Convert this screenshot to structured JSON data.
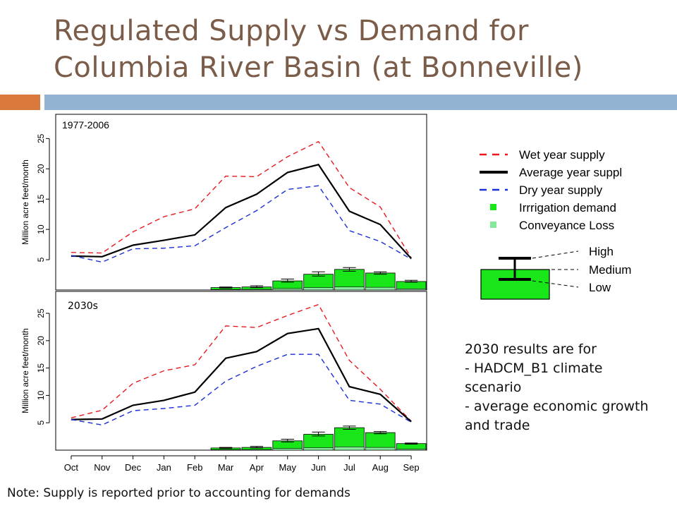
{
  "slide": {
    "title_lines": [
      "Regulated Supply vs Demand for",
      "Columbia River Basin (at Bonneville)"
    ],
    "results_note": [
      "2030 results are for",
      "- HADCM_B1 climate",
      "scenario",
      "- average economic growth",
      "and trade"
    ],
    "footnote": "Note: Supply is reported prior to accounting for demands"
  },
  "legend": {
    "items": [
      {
        "label": "Wet year supply",
        "color": "#e8191f",
        "style": "dashed"
      },
      {
        "label": "Average year suppl",
        "color": "#000000",
        "style": "solid"
      },
      {
        "label": "Dry year supply",
        "color": "#1a2fd6",
        "style": "dashed"
      },
      {
        "label": "Irrrigation demand",
        "color": "#19e619",
        "style": "square"
      },
      {
        "label": "Conveyance Loss",
        "color": "#86e89a",
        "style": "square"
      }
    ],
    "errorbar_labels": [
      "High",
      "Medium",
      "Low"
    ]
  },
  "colors": {
    "wet": "#e8191f",
    "average": "#000000",
    "dry": "#1a2fd6",
    "irrigation": "#19e619",
    "conveyance": "#86e89a"
  },
  "chart_data": [
    {
      "type": "line",
      "title": "1977-2006",
      "ylabel": "Million acre feet/month",
      "ylim": [
        0,
        29
      ],
      "yticks": [
        5,
        10,
        15,
        20,
        25
      ],
      "categories": [
        "Oct",
        "Nov",
        "Dec",
        "Jan",
        "Feb",
        "Mar",
        "Apr",
        "May",
        "Jun",
        "Jul",
        "Aug",
        "Sep"
      ],
      "series": [
        {
          "name": "Wet year supply",
          "values": [
            6.2,
            6.1,
            9.6,
            12.1,
            13.4,
            18.8,
            18.7,
            22.0,
            24.5,
            16.9,
            13.7,
            5.3
          ]
        },
        {
          "name": "Average year suppl",
          "values": [
            5.6,
            5.5,
            7.4,
            8.2,
            9.1,
            13.6,
            15.8,
            19.4,
            20.7,
            13.0,
            10.8,
            5.2
          ]
        },
        {
          "name": "Dry year supply",
          "values": [
            5.7,
            4.6,
            6.8,
            6.9,
            7.3,
            10.3,
            13.1,
            16.6,
            17.2,
            9.8,
            8.0,
            5.1
          ]
        }
      ],
      "demand": {
        "irrigation": [
          0,
          0,
          0,
          0,
          0,
          0.4,
          0.5,
          1.5,
          2.6,
          3.4,
          2.8,
          1.4
        ],
        "conveyance": [
          0,
          0,
          0,
          0,
          0,
          0.08,
          0.1,
          0.25,
          0.4,
          0.5,
          0.45,
          0.2
        ],
        "low": [
          0,
          0,
          0,
          0,
          0,
          0.3,
          0.4,
          1.3,
          2.3,
          3.1,
          2.6,
          1.3
        ],
        "high": [
          0,
          0,
          0,
          0,
          0,
          0.5,
          0.7,
          1.8,
          3.0,
          3.7,
          3.0,
          1.6
        ]
      }
    },
    {
      "type": "line",
      "title": "2030s",
      "ylabel": "Million acre feet/month",
      "ylim": [
        0,
        29
      ],
      "yticks": [
        5,
        10,
        15,
        20,
        25
      ],
      "categories": [
        "Oct",
        "Nov",
        "Dec",
        "Jan",
        "Feb",
        "Mar",
        "Apr",
        "May",
        "Jun",
        "Jul",
        "Aug",
        "Sep"
      ],
      "series": [
        {
          "name": "Wet year supply",
          "values": [
            5.9,
            7.3,
            12.2,
            14.5,
            15.6,
            22.7,
            22.4,
            24.6,
            26.6,
            16.4,
            11.1,
            5.3
          ]
        },
        {
          "name": "Average year suppl",
          "values": [
            5.6,
            5.7,
            8.2,
            9.1,
            10.6,
            16.8,
            18.0,
            21.3,
            22.2,
            11.6,
            10.2,
            5.2
          ]
        },
        {
          "name": "Dry year supply",
          "values": [
            5.6,
            4.6,
            7.2,
            7.6,
            8.2,
            12.6,
            15.3,
            17.5,
            17.5,
            9.1,
            8.4,
            5.1
          ]
        }
      ],
      "demand": {
        "irrigation": [
          0,
          0,
          0,
          0,
          0,
          0.4,
          0.5,
          1.7,
          2.9,
          4.1,
          3.2,
          1.2
        ],
        "conveyance": [
          0,
          0,
          0,
          0,
          0,
          0.08,
          0.1,
          0.3,
          0.45,
          0.6,
          0.5,
          0.2
        ],
        "low": [
          0,
          0,
          0,
          0,
          0,
          0.3,
          0.4,
          1.5,
          2.6,
          3.8,
          3.0,
          1.1
        ],
        "high": [
          0,
          0,
          0,
          0,
          0,
          0.5,
          0.7,
          2.0,
          3.3,
          4.4,
          3.4,
          1.3
        ]
      }
    }
  ]
}
